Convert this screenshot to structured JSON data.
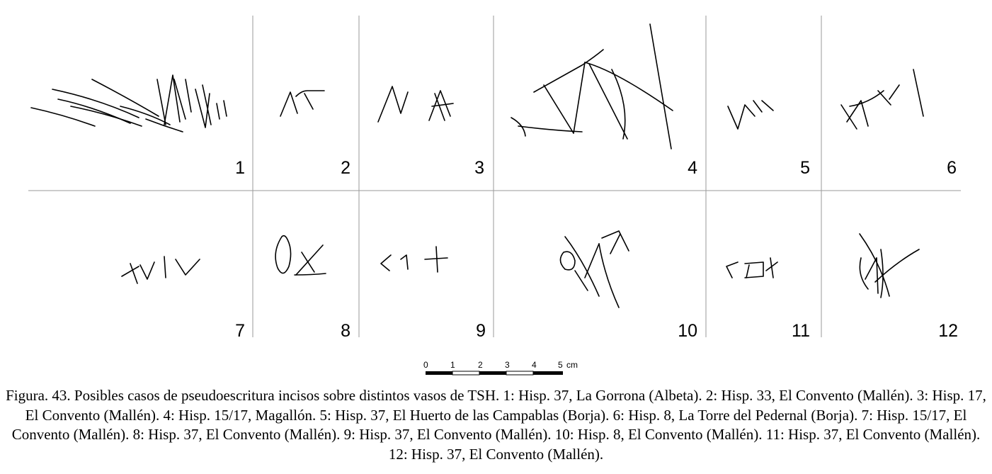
{
  "figure": {
    "panel_numbers": [
      "1",
      "2",
      "3",
      "4",
      "5",
      "6",
      "7",
      "8",
      "9",
      "10",
      "11",
      "12"
    ],
    "scale_bar": {
      "ticks": [
        "0",
        "1",
        "2",
        "3",
        "4",
        "5"
      ],
      "unit": "cm"
    },
    "caption": "Figura. 43. Posibles casos de pseudoescritura incisos sobre distintos vasos de TSH. 1: Hisp. 37, La Gorrona (Albeta). 2: Hisp. 33, El Convento (Mallén). 3: Hisp. 17, El Convento (Mallén). 4: Hisp. 15/17, Magallón. 5: Hisp. 37, El Huerto de las Campablas (Borja). 6: Hisp. 8, La Torre del Pedernal (Borja). 7: Hisp. 15/17, El Convento (Mallén). 8: Hisp. 37, El Convento (Mallén). 9: Hisp. 37, El Convento (Mallén). 10: Hisp. 8, El Convento (Mallén). 11: Hisp. 37, El Convento (Mallén). 12: Hisp. 37, El Convento (Mallén)."
  }
}
